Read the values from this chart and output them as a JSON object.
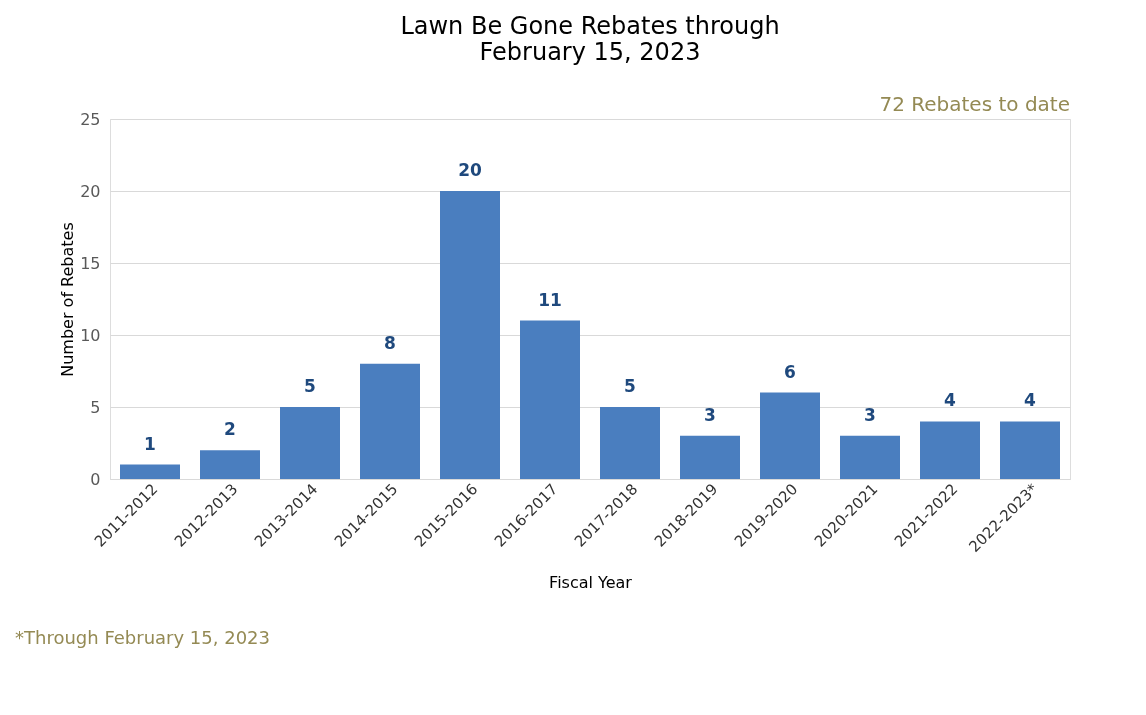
{
  "chart_data": {
    "type": "bar",
    "title": "Lawn Be Gone Rebates through\nFebruary 15, 2023",
    "xlabel": "Fiscal Year",
    "ylabel": "Number of Rebates",
    "categories": [
      "2011-2012",
      "2012-2013",
      "2013-2014",
      "2014-2015",
      "2015-2016",
      "2016-2017",
      "2017-2018",
      "2018-2019",
      "2019-2020",
      "2020-2021",
      "2021-2022",
      "2022-2023*"
    ],
    "values": [
      1,
      2,
      5,
      8,
      20,
      11,
      5,
      3,
      6,
      3,
      4,
      4
    ],
    "color": "#4a7ebf",
    "ylim": [
      0,
      25
    ],
    "yticks": [
      0,
      5,
      10,
      15,
      20,
      25
    ],
    "grid": "y",
    "data_labels": true,
    "annotations": [
      "72 Rebates to date",
      "*Through February 15, 2023"
    ]
  }
}
